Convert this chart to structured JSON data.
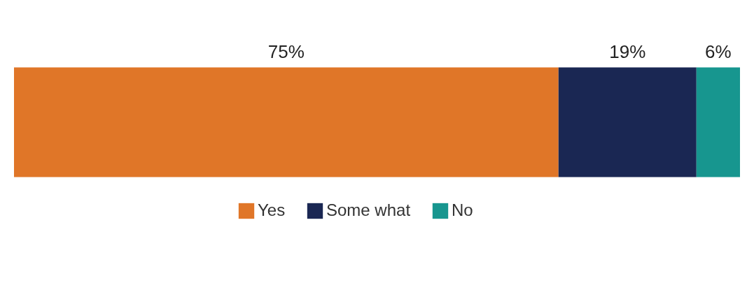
{
  "chart_data": {
    "type": "bar",
    "orientation": "horizontal",
    "stacked": true,
    "categories": [
      null
    ],
    "legend": "bottom",
    "series": [
      {
        "name": "Yes",
        "color": "#e07628",
        "values": [
          75
        ],
        "value_labels": [
          "75%"
        ]
      },
      {
        "name": "Some what",
        "color": "#1a2753",
        "values": [
          19
        ],
        "value_labels": [
          "19%"
        ]
      },
      {
        "name": "No",
        "color": "#17968f",
        "values": [
          6
        ],
        "value_labels": [
          "6%"
        ]
      }
    ]
  }
}
